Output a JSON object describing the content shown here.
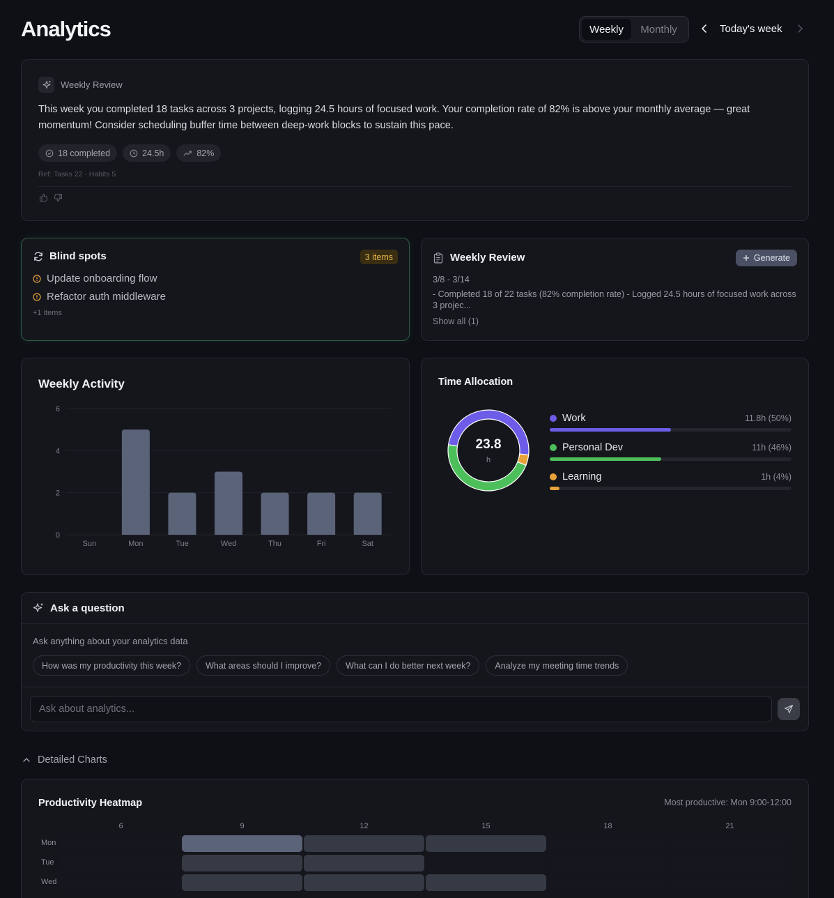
{
  "header": {
    "title": "Analytics",
    "tabs": [
      "Weekly",
      "Monthly"
    ],
    "active_tab": "Weekly",
    "period_label": "Today's week"
  },
  "ai_review": {
    "label": "Weekly Review",
    "text": "This week you completed 18 tasks across 3 projects, logging 24.5 hours of focused work. Your completion rate of 82% is above your monthly average — great momentum! Consider scheduling buffer time between deep-work blocks to sustain this pace.",
    "chips": [
      {
        "icon": "check-circle-icon",
        "label": "18 completed"
      },
      {
        "icon": "clock-icon",
        "label": "24.5h"
      },
      {
        "icon": "trend-up-icon",
        "label": "82%"
      }
    ],
    "ref": "Ref: Tasks 22 · Habits 5"
  },
  "blind_spots": {
    "title": "Blind spots",
    "badge": "3 items",
    "items": [
      "Update onboarding flow",
      "Refactor auth middleware"
    ],
    "more": "+1 items",
    "warn_color": "#e8a23a"
  },
  "weekly_review": {
    "title": "Weekly Review",
    "generate_label": "Generate",
    "date_range": "3/8 - 3/14",
    "summary": "- Completed 18 of 22 tasks (82% completion rate) - Logged 24.5 hours of focused work across 3 projec...",
    "show_all": "Show all (1)"
  },
  "weekly_activity": {
    "title": "Weekly Activity",
    "chart_data": {
      "type": "bar",
      "categories": [
        "Sun",
        "Mon",
        "Tue",
        "Wed",
        "Thu",
        "Fri",
        "Sat"
      ],
      "values": [
        0,
        5,
        2,
        3,
        2,
        2,
        2
      ],
      "ylim": [
        0,
        6
      ],
      "yticks": [
        "0",
        "2",
        "4",
        "6"
      ],
      "grid": true,
      "bar_color": "#5b6378"
    }
  },
  "time_allocation": {
    "title": "Time Allocation",
    "total": "23.8",
    "unit": "h",
    "chart_data": {
      "type": "pie",
      "categories": [
        "Work",
        "Personal Dev",
        "Learning"
      ],
      "values": [
        11.8,
        11,
        1
      ],
      "percents": [
        50,
        46,
        4
      ]
    },
    "items": [
      {
        "name": "Work",
        "value": "11.8h (50%)",
        "color": "#6c5ce7"
      },
      {
        "name": "Personal Dev",
        "value": "11h (46%)",
        "color": "#4cbf5a"
      },
      {
        "name": "Learning",
        "value": "1h (4%)",
        "color": "#e8a23a"
      }
    ]
  },
  "ask": {
    "title": "Ask a question",
    "subtitle": "Ask anything about your analytics data",
    "suggestions": [
      "How was my productivity this week?",
      "What areas should I improve?",
      "What can I do better next week?",
      "Analyze my meeting time trends"
    ],
    "placeholder": "Ask about analytics..."
  },
  "detailed": {
    "toggle_label": "Detailed Charts",
    "heatmap": {
      "title": "Productivity Heatmap",
      "note": "Most productive: Mon 9:00-12:00",
      "chart_data": {
        "type": "heatmap",
        "x_ticks": [
          "6",
          "9",
          "12",
          "15",
          "18",
          "21"
        ],
        "rows": [
          "Mon",
          "Tue",
          "Wed"
        ],
        "levels": [
          [
            0,
            2,
            1,
            1,
            0,
            0
          ],
          [
            0,
            1,
            1,
            0,
            0,
            0
          ],
          [
            0,
            1,
            1,
            1,
            0,
            0
          ]
        ]
      }
    }
  }
}
